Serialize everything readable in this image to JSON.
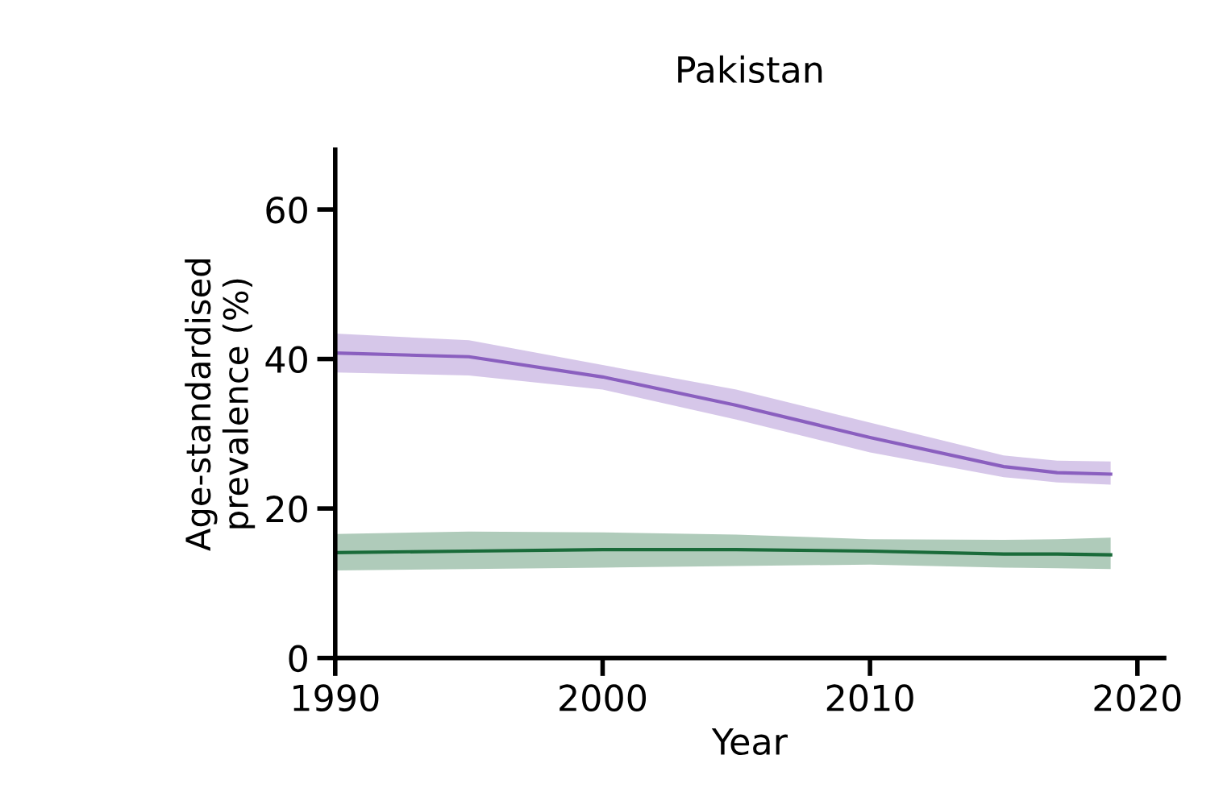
{
  "chart_data": {
    "type": "line",
    "title": "Pakistan",
    "xlabel": "Year",
    "ylabel": "Age-standardised\nprevalence (%)",
    "xlim": [
      1990,
      2021
    ],
    "xticks": [
      1990,
      2000,
      2010,
      2020
    ],
    "ylim": [
      0,
      68
    ],
    "yticks": [
      0,
      20,
      40,
      60
    ],
    "grid": false,
    "legend": false,
    "series": [
      {
        "color": "#8a5fbf",
        "x": [
          1990,
          1995,
          2000,
          2005,
          2010,
          2015,
          2017,
          2019
        ],
        "values": [
          40.8,
          40.3,
          37.6,
          33.8,
          29.5,
          25.6,
          24.8,
          24.6
        ],
        "lower": [
          38.2,
          37.8,
          35.9,
          31.9,
          27.5,
          24.2,
          23.5,
          23.2
        ],
        "upper": [
          43.4,
          42.5,
          39.2,
          35.9,
          31.5,
          27.1,
          26.4,
          26.3
        ]
      },
      {
        "color": "#1a6b3a",
        "x": [
          1990,
          1995,
          2000,
          2005,
          2010,
          2015,
          2017,
          2019
        ],
        "values": [
          14.1,
          14.3,
          14.5,
          14.5,
          14.3,
          13.9,
          13.9,
          13.8
        ],
        "lower": [
          11.7,
          11.9,
          12.1,
          12.3,
          12.5,
          12.1,
          12.0,
          11.9
        ],
        "upper": [
          16.6,
          16.9,
          16.8,
          16.5,
          15.9,
          15.8,
          15.9,
          16.1
        ]
      }
    ]
  }
}
